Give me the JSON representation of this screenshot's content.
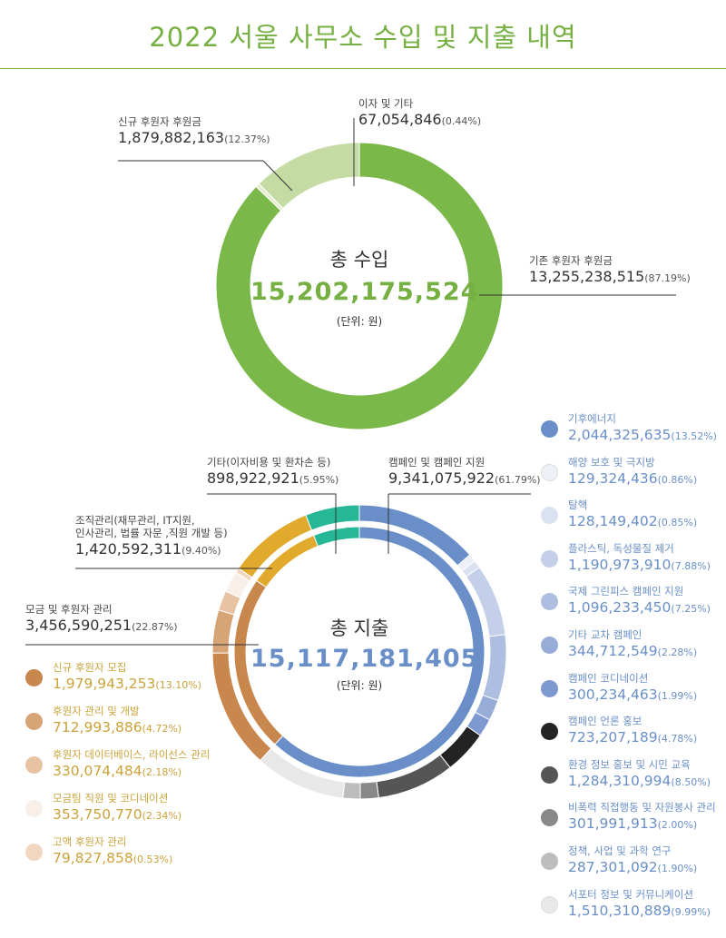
{
  "title": "2022 서울 사무소 수입 및 지출 내역",
  "colors": {
    "green": "#76b043",
    "blue": "#6a8fc8",
    "gold": "#c9a33a"
  },
  "chart_data": [
    {
      "type": "pie",
      "center": {
        "title": "총 수입",
        "total": "15,202,175,524",
        "unit": "(단위: 원)"
      },
      "slices": [
        {
          "name": "기존 후원자 후원금",
          "value": "13,255,238,515",
          "pct": "(87.19%)",
          "num": 13255238515,
          "color": "#7ab84a"
        },
        {
          "name": "이자 및 기타",
          "value": "67,054,846",
          "pct": "(0.44%)",
          "num": 67054846,
          "color": "#e6ecd0"
        },
        {
          "name": "신규 후원자 후원금",
          "value": "1,879,882,163",
          "pct": "(12.37%)",
          "num": 1879882163,
          "color": "#c4dca4"
        }
      ]
    },
    {
      "type": "pie",
      "center": {
        "title": "총 지출",
        "total": "15,117,181,405",
        "unit": "(단위: 원)"
      },
      "inner": [
        {
          "name": "캠페인 및 캠페인 지원",
          "value": "9,341,075,922",
          "pct": "(61.79%)",
          "num": 9341075922,
          "color": "#6a8fc8"
        },
        {
          "name": "모금 및 후원자 관리",
          "value": "3,456,590,251",
          "pct": "(22.87%)",
          "num": 3456590251,
          "color": "#c8874c"
        },
        {
          "name": "조직관리(재무관리, IT지원,",
          "name2": "인사관리, 법률 자문 ,직원 개발 등)",
          "value": "1,420,592,311",
          "pct": "(9.40%)",
          "num": 1420592311,
          "color": "#e2aa2c"
        },
        {
          "name": "기타(이자비용 및 환차손 등)",
          "value": "898,922,921",
          "pct": "(5.95%)",
          "num": 898922921,
          "color": "#26b896"
        }
      ],
      "outer": [
        {
          "name": "기후에너지",
          "value": "2,044,325,635",
          "pct": "(13.52%)",
          "num": 2044325635,
          "color": "#6a8fc8"
        },
        {
          "name": "해양 보호 및 극지방",
          "value": "129,324,436",
          "pct": "(0.86%)",
          "num": 129324436,
          "color": "#eef0f7"
        },
        {
          "name": "탈핵",
          "value": "128,149,402",
          "pct": "(0.85%)",
          "num": 128149402,
          "color": "#dae1f0"
        },
        {
          "name": "플라스틱, 독성물질 제거",
          "value": "1,190,973,910",
          "pct": "(7.88%)",
          "num": 1190973910,
          "color": "#c4cfe9"
        },
        {
          "name": "국제 그린피스 캠페인 지원",
          "value": "1,096,233,450",
          "pct": "(7.25%)",
          "num": 1096233450,
          "color": "#aebee1"
        },
        {
          "name": "기타 교차 캠페인",
          "value": "344,712,549",
          "pct": "(2.28%)",
          "num": 344712549,
          "color": "#98acd8"
        },
        {
          "name": "캠페인 코디네이션",
          "value": "300,234,463",
          "pct": "(1.99%)",
          "num": 300234463,
          "color": "#7e98d0"
        },
        {
          "name": "캠페인 언론 홍보",
          "value": "723,207,189",
          "pct": "(4.78%)",
          "num": 723207189,
          "color": "#232323"
        },
        {
          "name": "환경 정보 홍보 및 시민 교육",
          "value": "1,284,310,994",
          "pct": "(8.50%)",
          "num": 1284310994,
          "color": "#555555"
        },
        {
          "name": "비폭력 직접행동 및 자원봉사 관리",
          "value": "301,991,913",
          "pct": "(2.00%)",
          "num": 301991913,
          "color": "#888888"
        },
        {
          "name": "정책, 사업 및 과학 연구",
          "value": "287,301,092",
          "pct": "(1.90%)",
          "num": 287301092,
          "color": "#bdbdbd"
        },
        {
          "name": "서포터 정보 및 커뮤니케이션",
          "value": "1,510,310,889",
          "pct": "(9.99%)",
          "num": 1510310889,
          "color": "#e8e8e8"
        },
        {
          "name": "신규 후원자 모집",
          "value": "1,979,943,253",
          "pct": "(13.10%)",
          "num": 1979943253,
          "color": "#c8874c"
        },
        {
          "name": "후원자 관리 및 개발",
          "value": "712,993,886",
          "pct": "(4.72%)",
          "num": 712993886,
          "color": "#d6a477"
        },
        {
          "name": "후원자 데이터베이스, 라이선스 관리",
          "value": "330,074,484",
          "pct": "(2.18%)",
          "num": 330074484,
          "color": "#e7c3a3"
        },
        {
          "name": "모금팀 직원 및 코디네이션",
          "value": "353,750,770",
          "pct": "(2.34%)",
          "num": 353750770,
          "color": "#f8efe8"
        },
        {
          "name": "고액 후원자 관리",
          "value": "79,827,858",
          "pct": "(0.53%)",
          "num": 79827858,
          "color": "#f1d6c0"
        },
        {
          "name": "",
          "value": "",
          "pct": "",
          "num": 1420592311,
          "color": "#e2aa2c"
        },
        {
          "name": "",
          "value": "",
          "pct": "",
          "num": 898922921,
          "color": "#26b896"
        }
      ]
    }
  ]
}
